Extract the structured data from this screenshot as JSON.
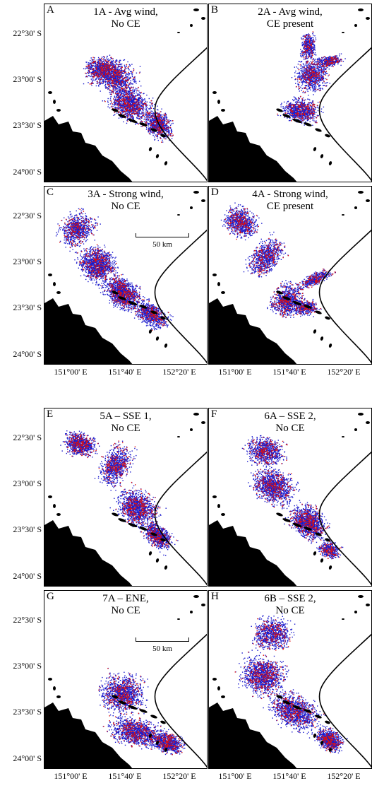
{
  "panels": [
    {
      "letter": "A",
      "title": "1A - Avg wind,\nNo CE",
      "scenario": "avg-noce"
    },
    {
      "letter": "B",
      "title": "2A - Avg wind,\nCE present",
      "scenario": "avg-ce"
    },
    {
      "letter": "C",
      "title": "3A - Strong wind,\nNo CE",
      "scenario": "strong-noce"
    },
    {
      "letter": "D",
      "title": "4A - Strong wind,\nCE present",
      "scenario": "strong-ce"
    },
    {
      "letter": "E",
      "title": "5A – SSE 1,\nNo CE",
      "scenario": "sse1"
    },
    {
      "letter": "F",
      "title": "6A – SSE 2,\nNo CE",
      "scenario": "sse2"
    },
    {
      "letter": "G",
      "title": "7A – ENE,\nNo CE",
      "scenario": "ene"
    },
    {
      "letter": "H",
      "title": "6B – SSE 2,\nNo CE",
      "scenario": "sse2b"
    }
  ],
  "lat_labels": [
    "22°30' S",
    "23°00' S",
    "23°30' S",
    "24°00' S"
  ],
  "lon_labels": [
    "151°00' E",
    "151°40' E",
    "152°20' E"
  ],
  "scale_bar": {
    "label": "50 km"
  },
  "colors": {
    "particles_blue": "#1a1acc",
    "particles_red": "#dd1111",
    "land": "#000000",
    "contour": "#000000"
  }
}
